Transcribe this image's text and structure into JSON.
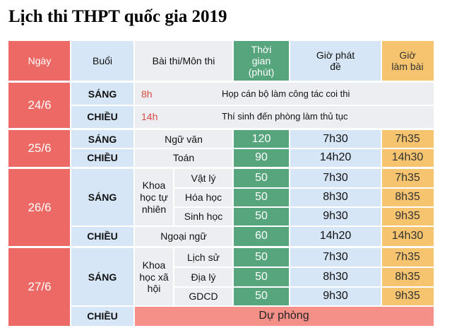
{
  "title": "Lịch thi THPT quốc gia 2019",
  "header": {
    "ngay": "Ngày",
    "buoi": "Buổi",
    "bai_thi": "Bài thi/Môn thi",
    "thoi_gian": "Thời gian (phút)",
    "gio_phat_de": "Giờ phát đề",
    "gio_lam_bai": "Giờ làm bài"
  },
  "d246": {
    "date": "24/6",
    "sang": "SÁNG",
    "sang_time": "8h",
    "sang_note": "Họp cán bộ làm công tác coi thi",
    "chieu": "CHIỀU",
    "chieu_time": "14h",
    "chieu_note": "Thí sinh đến phòng làm thủ tục"
  },
  "d256": {
    "date": "25/6",
    "sang": "SÁNG",
    "sang_subject": "Ngữ văn",
    "sang_dur": "120",
    "sang_phat": "7h30",
    "sang_lam": "7h35",
    "chieu": "CHIỀU",
    "chieu_subject": "Toán",
    "chieu_dur": "90",
    "chieu_phat": "14h20",
    "chieu_lam": "14h30"
  },
  "d266": {
    "date": "26/6",
    "sang": "SÁNG",
    "group": "Khoa học tự nhiên",
    "s1": "Vật lý",
    "s1_dur": "50",
    "s1_phat": "7h30",
    "s1_lam": "7h35",
    "s2": "Hóa học",
    "s2_dur": "50",
    "s2_phat": "8h30",
    "s2_lam": "8h35",
    "s3": "Sinh học",
    "s3_dur": "50",
    "s3_phat": "9h30",
    "s3_lam": "9h35",
    "chieu": "CHIỀU",
    "chieu_subject": "Ngoại ngữ",
    "chieu_dur": "60",
    "chieu_phat": "14h20",
    "chieu_lam": "14h30"
  },
  "d276": {
    "date": "27/6",
    "sang": "SÁNG",
    "group": "Khoa học xã hội",
    "s1": "Lịch sử",
    "s1_dur": "50",
    "s1_phat": "7h30",
    "s1_lam": "7h35",
    "s2": "Địa lý",
    "s2_dur": "50",
    "s2_phat": "8h30",
    "s2_lam": "8h35",
    "s3": "GDCD",
    "s3_dur": "50",
    "s3_phat": "9h30",
    "s3_lam": "9h35",
    "chieu": "CHIỀU",
    "chieu_note": "Dự phòng"
  },
  "colors": {
    "date_red": "#ec6965",
    "session_blue": "#d6e6f7",
    "duration_green": "#56a57c",
    "start_orange": "#f6c46e",
    "neutral_gray": "#eceef1",
    "time_red": "#d84a42"
  }
}
